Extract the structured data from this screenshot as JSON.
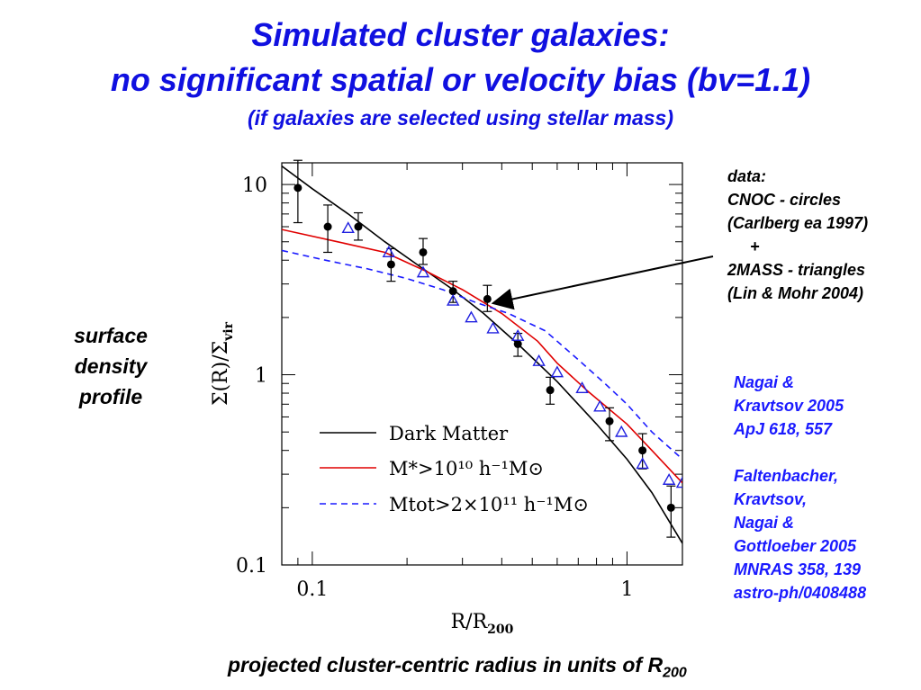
{
  "title": {
    "line1": "Simulated cluster galaxies:",
    "line2": "no significant spatial or velocity bias (bv=1.1)",
    "line3": "(if galaxies are selected using stellar mass)"
  },
  "side_label": [
    "surface",
    "density",
    "profile"
  ],
  "annotation_data": "data:\nCNOC - circles\n(Carlberg ea 1997)\n     +\n2MASS - triangles\n(Lin & Mohr 2004)",
  "annotation_refs": "Nagai &\nKravtsov 2005\nApJ 618, 557\n\nFaltenbacher,\nKravtsov,\nNagai &\nGottloeber 2005\nMNRAS 358, 139\nastro-ph/0408488",
  "caption": {
    "text": "projected cluster-centric radius in units of R",
    "sub": "200"
  },
  "colors": {
    "title": "#1010e0",
    "refs": "#1a1aff",
    "dark_matter": "#000000",
    "stellar": "#e00000",
    "tot": "#1a1aff",
    "triangles": "#2020e0"
  },
  "chart_data": {
    "type": "line",
    "xscale": "log",
    "yscale": "log",
    "xlim": [
      0.08,
      1.5
    ],
    "ylim": [
      0.1,
      13
    ],
    "xlabel": "R/R200",
    "ylabel": "Σ(R)/Σvir",
    "xticks": [
      {
        "value": 0.1,
        "label": "0.1"
      },
      {
        "value": 1,
        "label": "1"
      }
    ],
    "yticks": [
      {
        "value": 0.1,
        "label": "0.1"
      },
      {
        "value": 1,
        "label": "1"
      },
      {
        "value": 10,
        "label": "10"
      }
    ],
    "legend_position": "bottom-left",
    "series": [
      {
        "name": "Dark Matter",
        "style": "solid",
        "color": "#000000",
        "x": [
          0.08,
          0.1,
          0.13,
          0.17,
          0.22,
          0.28,
          0.35,
          0.45,
          0.6,
          0.8,
          1.0,
          1.2,
          1.5
        ],
        "y": [
          12.5,
          9.5,
          7.0,
          5.0,
          3.7,
          2.8,
          2.1,
          1.45,
          0.92,
          0.55,
          0.36,
          0.24,
          0.13
        ]
      },
      {
        "name": "M*>10^10 h^-1 M⊙",
        "style": "solid",
        "color": "#e00000",
        "x": [
          0.08,
          0.12,
          0.17,
          0.23,
          0.3,
          0.4,
          0.52,
          0.6,
          0.75,
          1.0,
          1.2,
          1.5
        ],
        "y": [
          5.8,
          5.0,
          4.4,
          3.5,
          2.8,
          2.1,
          1.5,
          1.15,
          0.82,
          0.55,
          0.4,
          0.27
        ]
      },
      {
        "name": "Mtot>2×10^11 h^-1 M⊙",
        "style": "dashed",
        "color": "#1a1aff",
        "x": [
          0.08,
          0.11,
          0.15,
          0.2,
          0.26,
          0.33,
          0.42,
          0.55,
          0.7,
          0.85,
          1.0,
          1.2,
          1.5
        ],
        "y": [
          4.5,
          4.0,
          3.6,
          3.2,
          2.8,
          2.4,
          2.1,
          1.7,
          1.2,
          0.9,
          0.7,
          0.5,
          0.36
        ]
      }
    ],
    "points": [
      {
        "name": "CNOC",
        "marker": "circle",
        "color": "#000000",
        "x": [
          0.09,
          0.112,
          0.14,
          0.178,
          0.225,
          0.28,
          0.36,
          0.45,
          0.57,
          0.88,
          1.12,
          1.38
        ],
        "y": [
          9.6,
          6.0,
          6.0,
          3.8,
          4.4,
          2.75,
          2.5,
          1.45,
          0.83,
          0.57,
          0.4,
          0.2
        ],
        "err_lo": [
          6.3,
          4.4,
          5.1,
          3.1,
          3.8,
          2.4,
          2.15,
          1.25,
          0.7,
          0.45,
          0.32,
          0.14
        ],
        "err_hi": [
          13.4,
          7.8,
          7.1,
          4.6,
          5.2,
          3.1,
          2.95,
          1.65,
          0.97,
          0.67,
          0.49,
          0.26
        ]
      },
      {
        "name": "2MASS",
        "marker": "triangle",
        "color": "#2020e0",
        "x": [
          0.13,
          0.175,
          0.225,
          0.28,
          0.32,
          0.375,
          0.45,
          0.525,
          0.6,
          0.72,
          0.82,
          0.96,
          1.12,
          1.36,
          1.5
        ],
        "y": [
          5.9,
          4.4,
          3.45,
          2.45,
          2.0,
          1.75,
          1.6,
          1.18,
          1.03,
          0.85,
          0.68,
          0.5,
          0.34,
          0.28,
          0.27
        ]
      }
    ],
    "legend": [
      {
        "label": "Dark Matter",
        "style": "solid",
        "color": "#000000"
      },
      {
        "label": "M*>10¹⁰ h⁻¹M⊙",
        "style": "solid",
        "color": "#e00000"
      },
      {
        "label": "Mtot>2×10¹¹ h⁻¹M⊙",
        "style": "dashed",
        "color": "#1a1aff"
      }
    ]
  }
}
